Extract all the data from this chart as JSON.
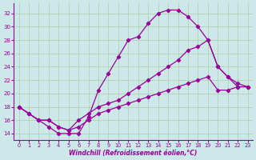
{
  "xlabel": "Windchill (Refroidissement éolien,°C)",
  "bg_color": "#cce8e8",
  "grid_color": "#aaccaa",
  "lc": "#990099",
  "xlim": [
    -0.5,
    23.5
  ],
  "ylim": [
    13.0,
    33.5
  ],
  "xticks": [
    0,
    1,
    2,
    3,
    4,
    5,
    6,
    7,
    8,
    9,
    10,
    11,
    12,
    13,
    14,
    15,
    16,
    17,
    18,
    19,
    20,
    21,
    22,
    23
  ],
  "yticks": [
    14,
    16,
    18,
    20,
    22,
    24,
    26,
    28,
    30,
    32
  ],
  "line1_x": [
    0,
    1,
    2,
    3,
    4,
    5,
    6,
    7,
    8,
    9,
    10,
    11,
    12,
    13,
    14,
    15,
    16,
    17,
    18,
    19,
    20,
    21,
    22,
    23
  ],
  "line1_y": [
    18,
    17,
    16,
    15,
    14,
    14,
    14,
    16.5,
    20.5,
    23,
    25.5,
    28,
    28.5,
    30.5,
    32,
    32.5,
    32.5,
    31.5,
    30,
    28,
    24,
    22.5,
    21,
    21
  ],
  "line2_x": [
    0,
    2,
    3,
    4,
    5,
    6,
    7,
    8,
    9,
    10,
    11,
    12,
    13,
    14,
    15,
    16,
    17,
    18,
    19,
    20,
    21,
    22,
    23
  ],
  "line2_y": [
    18,
    16,
    16,
    15,
    14.5,
    16,
    17,
    18,
    18.5,
    19,
    20,
    21,
    22,
    23,
    24,
    25,
    26.5,
    27,
    28,
    24,
    22.5,
    21.5,
    21
  ],
  "line3_x": [
    0,
    1,
    2,
    3,
    4,
    5,
    6,
    7,
    8,
    9,
    10,
    11,
    12,
    13,
    14,
    15,
    16,
    17,
    18,
    19,
    20,
    21,
    22,
    23
  ],
  "line3_y": [
    18,
    17,
    16,
    16,
    15,
    14.5,
    15,
    16,
    17,
    17.5,
    18,
    18.5,
    19,
    19.5,
    20,
    20.5,
    21,
    21.5,
    22,
    22.5,
    20.5,
    20.5,
    21,
    21
  ]
}
